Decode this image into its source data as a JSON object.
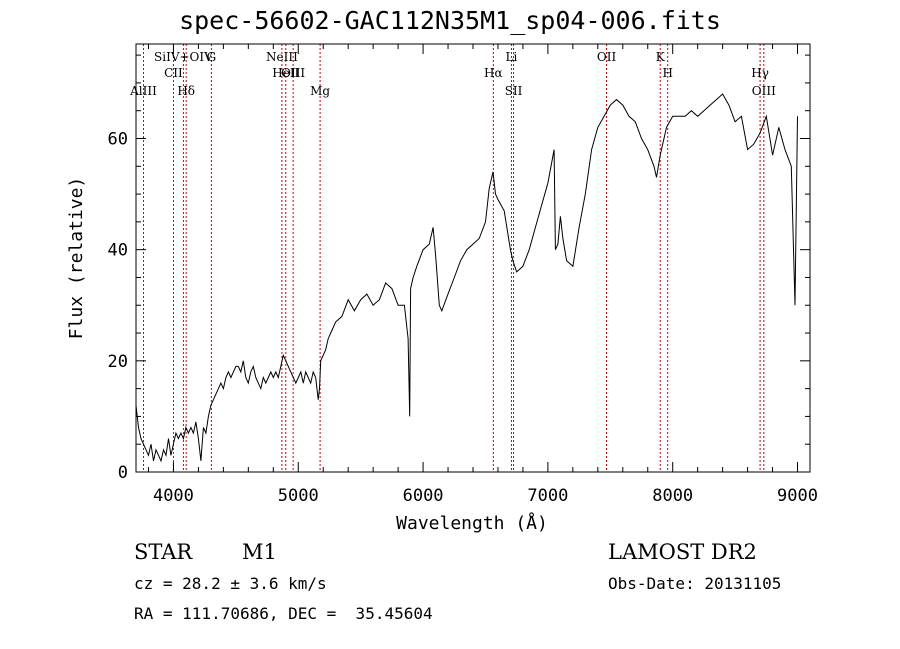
{
  "title": "spec-56602-GAC112N35M1_sp04-006.fits",
  "footer": {
    "class": "STAR",
    "subclass": "M1",
    "survey": "LAMOST DR2",
    "redshift": "cz = 28.2 ± 3.6 km/s",
    "obs_date": "Obs-Date: 20131105",
    "coords": "RA = 111.70686, DEC =  35.45604"
  },
  "chart_data": {
    "type": "line",
    "title": "spec-56602-GAC112N35M1_sp04-006.fits",
    "xlabel": "Wavelength (Å)",
    "ylabel": "Flux (relative)",
    "xlim": [
      3700,
      9100
    ],
    "ylim": [
      0,
      77
    ],
    "xticks": [
      4000,
      5000,
      6000,
      7000,
      8000,
      9000
    ],
    "yticks": [
      0,
      20,
      40,
      60
    ],
    "line_color": "#000000",
    "marker_color": "#cc0000",
    "series": [
      {
        "x": [
          3700,
          3720,
          3740,
          3760,
          3780,
          3800,
          3820,
          3840,
          3860,
          3880,
          3900,
          3920,
          3940,
          3960,
          3980,
          4000,
          4020,
          4040,
          4060,
          4080,
          4100,
          4120,
          4140,
          4160,
          4180,
          4200,
          4220,
          4240,
          4260,
          4280,
          4300,
          4320,
          4340,
          4360,
          4380,
          4400,
          4420,
          4440,
          4460,
          4480,
          4500,
          4520,
          4540,
          4560,
          4580,
          4600,
          4620,
          4640,
          4660,
          4680,
          4700,
          4720,
          4740,
          4760,
          4780,
          4800,
          4820,
          4840,
          4860,
          4880,
          4900,
          4920,
          4940,
          4960,
          4980,
          5000,
          5020,
          5040,
          5060,
          5080,
          5100,
          5120,
          5140,
          5160,
          5170,
          5180,
          5200,
          5220,
          5240,
          5260,
          5280,
          5300,
          5350,
          5400,
          5450,
          5500,
          5550,
          5600,
          5650,
          5700,
          5750,
          5800,
          5850,
          5880,
          5893,
          5900,
          5920,
          5950,
          6000,
          6050,
          6080,
          6100,
          6130,
          6150,
          6200,
          6250,
          6300,
          6350,
          6400,
          6450,
          6500,
          6530,
          6560,
          6580,
          6600,
          6650,
          6700,
          6720,
          6750,
          6800,
          6850,
          6900,
          6950,
          7000,
          7050,
          7060,
          7080,
          7100,
          7120,
          7150,
          7200,
          7250,
          7300,
          7350,
          7400,
          7450,
          7500,
          7550,
          7600,
          7650,
          7700,
          7750,
          7800,
          7850,
          7870,
          7900,
          7950,
          8000,
          8050,
          8100,
          8150,
          8200,
          8250,
          8300,
          8350,
          8400,
          8450,
          8500,
          8550,
          8600,
          8650,
          8700,
          8750,
          8800,
          8850,
          8900,
          8950,
          8980,
          9000
        ],
        "y": [
          12,
          8,
          6,
          5,
          4,
          3,
          5,
          2,
          4,
          3,
          2,
          4,
          3,
          6,
          3,
          5,
          7,
          6,
          7,
          6,
          8,
          7,
          8,
          7,
          9,
          6,
          2,
          8,
          7,
          10,
          12,
          13,
          14,
          15,
          16,
          15,
          17,
          18,
          17,
          18,
          19,
          19,
          18,
          20,
          17,
          16,
          18,
          19,
          17,
          16,
          15,
          17,
          16,
          17,
          18,
          17,
          18,
          17,
          19,
          21,
          20,
          19,
          18,
          17,
          16,
          17,
          18,
          16,
          18,
          17,
          16,
          18,
          17,
          13,
          15,
          20,
          21,
          22,
          24,
          25,
          26,
          27,
          28,
          31,
          29,
          31,
          32,
          30,
          31,
          34,
          33,
          30,
          30,
          24,
          10,
          33,
          35,
          37,
          40,
          41,
          44,
          39,
          30,
          29,
          32,
          35,
          38,
          40,
          41,
          42,
          45,
          51,
          54,
          50,
          49,
          47,
          40,
          38,
          36,
          37,
          40,
          44,
          48,
          52,
          58,
          40,
          41,
          46,
          42,
          38,
          37,
          44,
          50,
          58,
          62,
          64,
          66,
          67,
          66,
          64,
          63,
          60,
          58,
          55,
          53,
          57,
          62,
          64,
          64,
          64,
          65,
          64,
          65,
          66,
          67,
          68,
          66,
          63,
          64,
          58,
          59,
          61,
          64,
          57,
          62,
          58,
          55,
          30,
          64
        ]
      }
    ],
    "lines_upper": [
      {
        "label": "SiIV+OIV",
        "x": 4080
      },
      {
        "label": "CII",
        "x": 4000
      },
      {
        "label": "G",
        "x": 4304
      },
      {
        "label": "OIII",
        "x": 4959
      },
      {
        "label": "NeIII",
        "x": 4869
      },
      {
        "label": "HeII",
        "x": 4900
      },
      {
        "label": "Li",
        "x": 6708
      },
      {
        "label": "Hα",
        "x": 6563
      },
      {
        "label": "OII",
        "x": 7470
      },
      {
        "label": "H",
        "x": 7960
      },
      {
        "label": "K",
        "x": 7900
      },
      {
        "label": "Hγ",
        "x": 8700
      }
    ],
    "lines_lower": [
      {
        "label": "AlIII",
        "x": 3760
      },
      {
        "label": "Hδ",
        "x": 4102
      },
      {
        "label": "Mg",
        "x": 5175
      },
      {
        "label": "SII",
        "x": 6725
      },
      {
        "label": "OIII",
        "x": 8730
      }
    ]
  }
}
